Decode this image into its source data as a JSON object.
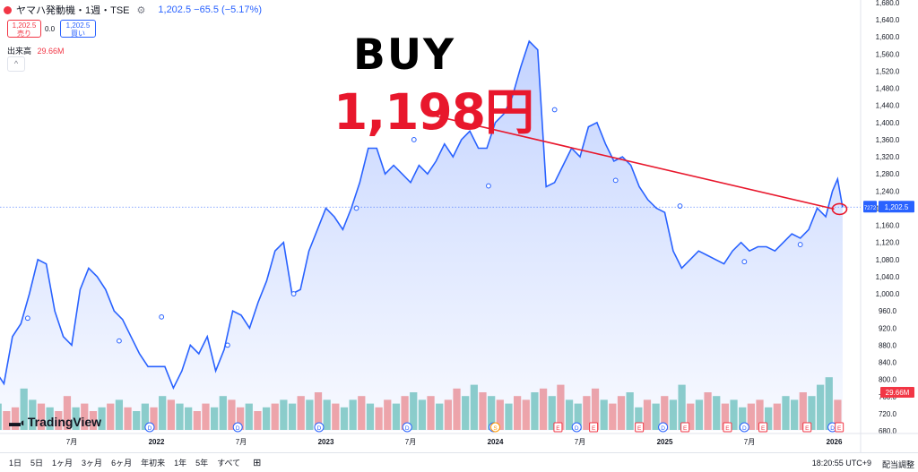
{
  "header": {
    "title": "ヤマハ発動機・1週・TSE",
    "ohlc": "1,202.5 −65.5 (−5.17%)",
    "sell_price": "1,202.5",
    "sell_label": "売り",
    "spread": "0.0",
    "buy_price": "1,202.5",
    "buy_label": "買い",
    "volume_label": "出来高",
    "volume_value": "29.66M",
    "collapse_glyph": "^"
  },
  "annotation": {
    "text": "BUY",
    "price": "1,198円",
    "color": "#e8172c"
  },
  "price_axis": {
    "labels": [
      "1,680.0",
      "1,640.0",
      "1,600.0",
      "1,560.0",
      "1,520.0",
      "1,480.0",
      "1,440.0",
      "1,400.0",
      "1,360.0",
      "1,320.0",
      "1,280.0",
      "1,240.0",
      "1,200.0",
      "1,160.0",
      "1,120.0",
      "1,080.0",
      "1,040.0",
      "1,000.0",
      "960.0",
      "920.0",
      "880.0",
      "840.0",
      "800.0",
      "760.0",
      "720.0",
      "680.0"
    ],
    "current_price": "1,202.5",
    "current_symbol": "7272",
    "volume_badge": "29.66M"
  },
  "time_axis": {
    "labels": [
      {
        "t": 2021.5,
        "label": "7月",
        "bold": false
      },
      {
        "t": 2022.0,
        "label": "2022",
        "bold": true
      },
      {
        "t": 2022.5,
        "label": "7月",
        "bold": false
      },
      {
        "t": 2023.0,
        "label": "2023",
        "bold": true
      },
      {
        "t": 2023.5,
        "label": "7月",
        "bold": false
      },
      {
        "t": 2024.0,
        "label": "2024",
        "bold": true
      },
      {
        "t": 2024.5,
        "label": "7月",
        "bold": false
      },
      {
        "t": 2025.0,
        "label": "2025",
        "bold": true
      },
      {
        "t": 2025.5,
        "label": "7月",
        "bold": false
      },
      {
        "t": 2026.0,
        "label": "2026",
        "bold": true
      }
    ]
  },
  "events": [
    {
      "t": 2021.96,
      "type": "D"
    },
    {
      "t": 2022.48,
      "type": "D"
    },
    {
      "t": 2022.96,
      "type": "D"
    },
    {
      "t": 2023.48,
      "type": "D"
    },
    {
      "t": 2023.99,
      "type": "D"
    },
    {
      "t": 2024.0,
      "type": "S"
    },
    {
      "t": 2024.37,
      "type": "E"
    },
    {
      "t": 2024.48,
      "type": "D"
    },
    {
      "t": 2024.58,
      "type": "E"
    },
    {
      "t": 2024.85,
      "type": "E"
    },
    {
      "t": 2024.99,
      "type": "D"
    },
    {
      "t": 2025.12,
      "type": "E"
    },
    {
      "t": 2025.37,
      "type": "E"
    },
    {
      "t": 2025.47,
      "type": "D"
    },
    {
      "t": 2025.58,
      "type": "E"
    },
    {
      "t": 2025.84,
      "type": "E"
    },
    {
      "t": 2025.99,
      "type": "D"
    },
    {
      "t": 2026.03,
      "type": "E"
    }
  ],
  "bottom_bar": {
    "ranges": [
      "1日",
      "5日",
      "1ヶ月",
      "3ヶ月",
      "6ヶ月",
      "年初来",
      "1年",
      "5年",
      "すべて"
    ],
    "clock": "18:20:55 UTC+9",
    "adjust_label": "配当調整"
  },
  "branding": "TradingView",
  "colors": {
    "line": "#2962ff",
    "vol_up": "#26a69a",
    "vol_down": "#ef5350",
    "trend": "#e8172c"
  },
  "chart_data": {
    "type": "area",
    "title": "ヤマハ発動機・1週・TSE",
    "x_unit": "decimal year",
    "ylim": [
      680,
      1680
    ],
    "x": [
      2021.05,
      2021.1,
      2021.15,
      2021.2,
      2021.25,
      2021.3,
      2021.35,
      2021.4,
      2021.45,
      2021.5,
      2021.55,
      2021.6,
      2021.65,
      2021.7,
      2021.75,
      2021.8,
      2021.85,
      2021.9,
      2021.95,
      2022.0,
      2022.05,
      2022.1,
      2022.15,
      2022.2,
      2022.25,
      2022.3,
      2022.35,
      2022.4,
      2022.45,
      2022.5,
      2022.55,
      2022.6,
      2022.65,
      2022.7,
      2022.75,
      2022.8,
      2022.85,
      2022.9,
      2022.95,
      2023.0,
      2023.05,
      2023.1,
      2023.15,
      2023.2,
      2023.25,
      2023.3,
      2023.35,
      2023.4,
      2023.45,
      2023.5,
      2023.55,
      2023.6,
      2023.65,
      2023.7,
      2023.75,
      2023.8,
      2023.85,
      2023.9,
      2023.95,
      2024.0,
      2024.05,
      2024.1,
      2024.15,
      2024.2,
      2024.25,
      2024.3,
      2024.35,
      2024.4,
      2024.45,
      2024.5,
      2024.55,
      2024.6,
      2024.65,
      2024.7,
      2024.75,
      2024.8,
      2024.85,
      2024.9,
      2024.95,
      2025.0,
      2025.05,
      2025.1,
      2025.15,
      2025.2,
      2025.25,
      2025.3,
      2025.35,
      2025.4,
      2025.45,
      2025.5,
      2025.55,
      2025.6,
      2025.65,
      2025.7,
      2025.75,
      2025.8,
      2025.85,
      2025.9,
      2025.95,
      2025.99,
      2026.02,
      2026.05
    ],
    "y": [
      820,
      790,
      900,
      930,
      1000,
      1080,
      1070,
      960,
      900,
      880,
      1010,
      1060,
      1040,
      1010,
      960,
      940,
      900,
      860,
      830,
      830,
      830,
      780,
      820,
      880,
      860,
      900,
      820,
      870,
      960,
      950,
      920,
      980,
      1030,
      1100,
      1120,
      1000,
      1010,
      1100,
      1150,
      1200,
      1180,
      1150,
      1200,
      1260,
      1340,
      1340,
      1280,
      1300,
      1280,
      1260,
      1300,
      1280,
      1310,
      1350,
      1320,
      1360,
      1380,
      1340,
      1340,
      1400,
      1420,
      1460,
      1530,
      1590,
      1570,
      1250,
      1260,
      1300,
      1340,
      1320,
      1390,
      1400,
      1350,
      1310,
      1320,
      1300,
      1250,
      1220,
      1200,
      1190,
      1100,
      1060,
      1080,
      1100,
      1090,
      1080,
      1070,
      1100,
      1120,
      1100,
      1110,
      1110,
      1100,
      1120,
      1140,
      1130,
      1150,
      1200,
      1180,
      1240,
      1268,
      1202
    ],
    "markers": [
      {
        "x": 2021.24,
        "y": 943
      },
      {
        "x": 2021.78,
        "y": 890
      },
      {
        "x": 2022.03,
        "y": 946
      },
      {
        "x": 2022.42,
        "y": 880
      },
      {
        "x": 2022.81,
        "y": 1000
      },
      {
        "x": 2023.18,
        "y": 1200
      },
      {
        "x": 2023.52,
        "y": 1360
      },
      {
        "x": 2023.96,
        "y": 1252
      },
      {
        "x": 2024.35,
        "y": 1430
      },
      {
        "x": 2024.71,
        "y": 1265
      },
      {
        "x": 2025.09,
        "y": 1205
      },
      {
        "x": 2025.47,
        "y": 1075
      },
      {
        "x": 2025.8,
        "y": 1115
      }
    ],
    "trendline": {
      "from": {
        "x": 2023.65,
        "y": 1415
      },
      "to": {
        "x": 2026.0,
        "y": 1198
      }
    },
    "buy_point": {
      "x": 2026.0,
      "y": 1198
    },
    "volume_note": "weekly volume histogram along bottom, scale relative to 29.66M latest bar",
    "volume": [
      8,
      6,
      9,
      5,
      7,
      5,
      6,
      11,
      8,
      7,
      6,
      5,
      9,
      6,
      7,
      5,
      6,
      7,
      8,
      6,
      5,
      7,
      6,
      9,
      8,
      7,
      6,
      5,
      7,
      6,
      9,
      8,
      6,
      7,
      5,
      6,
      7,
      8,
      7,
      9,
      8,
      10,
      8,
      7,
      6,
      8,
      9,
      7,
      6,
      8,
      7,
      9,
      10,
      8,
      9,
      7,
      8,
      11,
      9,
      12,
      10,
      9,
      8,
      7,
      9,
      8,
      10,
      11,
      9,
      12,
      8,
      7,
      9,
      11,
      8,
      7,
      9,
      10,
      6,
      8,
      7,
      9,
      8,
      12,
      7,
      8,
      10,
      9,
      7,
      8,
      6,
      7,
      8,
      6,
      7,
      9,
      8,
      10,
      9,
      12,
      14,
      8
    ],
    "volume_up": [
      0,
      1,
      0,
      1,
      1,
      0,
      0,
      1,
      1,
      0,
      1,
      0,
      0,
      1,
      0,
      0,
      1,
      0,
      1,
      0,
      1,
      1,
      0,
      1,
      0,
      1,
      1,
      0,
      0,
      1,
      1,
      0,
      0,
      1,
      0,
      1,
      0,
      1,
      1,
      0,
      1,
      0,
      1,
      0,
      1,
      1,
      0,
      1,
      0,
      0,
      1,
      0,
      1,
      1,
      0,
      1,
      0,
      0,
      1,
      1,
      0,
      1,
      0,
      1,
      0,
      0,
      1,
      0,
      1,
      0,
      1,
      1,
      0,
      0,
      1,
      0,
      0,
      1,
      1,
      0,
      1,
      0,
      1,
      1,
      0,
      1,
      0,
      1,
      0,
      1,
      1,
      0,
      0,
      1,
      0,
      1,
      1,
      0,
      1,
      1,
      1,
      0
    ]
  }
}
